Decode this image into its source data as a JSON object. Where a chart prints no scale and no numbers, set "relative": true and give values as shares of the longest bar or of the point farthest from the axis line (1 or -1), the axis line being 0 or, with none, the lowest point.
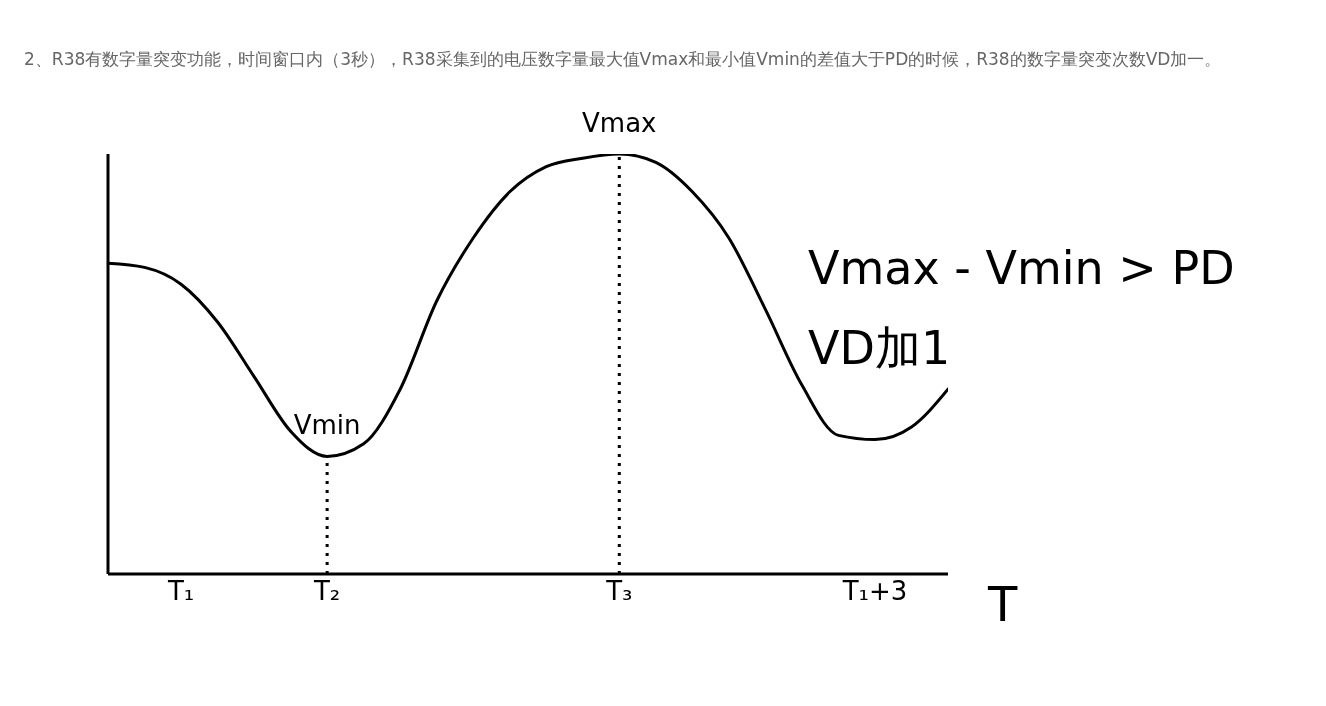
{
  "chart_data": {
    "type": "line",
    "title": "2、R38有数字量突变功能，时间窗口内（3秒），R38采集到的电压数字量最大值Vmax和最小值Vmin的差值大于PD的时候，R38的数字量突变次数VD加一。",
    "xlabel": "T",
    "categories": [
      null,
      null,
      "T₁",
      null,
      null,
      null,
      "T₂",
      null,
      null,
      null,
      null,
      null,
      null,
      null,
      "T₃",
      null,
      null,
      null,
      null,
      null,
      null,
      "T₁+3",
      null,
      null
    ],
    "series": [
      {
        "color": "#000000",
        "values": [
          0.74,
          0.73,
          0.69,
          0.6,
          0.47,
          0.34,
          0.28,
          0.31,
          0.44,
          0.65,
          0.8,
          0.91,
          0.97,
          0.99,
          1,
          0.98,
          0.91,
          0.8,
          0.63,
          0.45,
          0.33,
          0.32,
          0.35,
          0.44
        ]
      }
    ],
    "relative": true,
    "marker": "none",
    "line_style": "solid",
    "tick_labels": "x",
    "grid": false,
    "legend": false,
    "ref_lines": [
      {
        "axis": "x",
        "value": "T₂",
        "line_style": "dotted",
        "color": "#000000"
      },
      {
        "axis": "x",
        "value": "T₃",
        "line_style": "dotted",
        "color": "#000000"
      }
    ],
    "annotations": [
      {
        "text": "Vmin",
        "x": "T₂",
        "y": 0.28
      },
      {
        "text": "Vmax",
        "x": "T₃",
        "y": 1
      },
      "Vmax - Vmin > PD",
      "VD加1"
    ]
  }
}
